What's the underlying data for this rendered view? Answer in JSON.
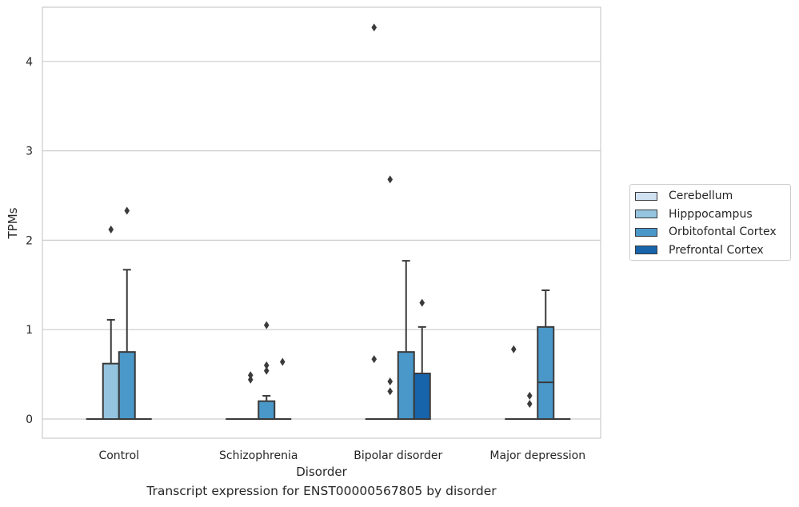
{
  "chart_data": {
    "type": "box",
    "title": "",
    "caption": "Transcript expression for ENST00000567805 by disorder",
    "xlabel": "Disorder",
    "ylabel": "TPMs",
    "ylim": [
      -0.22,
      4.6
    ],
    "yticks": [
      0,
      1,
      2,
      3,
      4
    ],
    "grid": true,
    "legend_position": "right",
    "categories": [
      "Control",
      "Schizophrenia",
      "Bipolar disorder",
      "Major depression"
    ],
    "series": [
      {
        "name": "Cerebellum",
        "color": "#d0e1f2",
        "boxes": [
          {
            "q1": 0,
            "median": 0,
            "q3": 0,
            "whislo": 0,
            "whishi": 0,
            "fliers": []
          },
          {
            "q1": 0,
            "median": 0,
            "q3": 0,
            "whislo": 0,
            "whishi": 0,
            "fliers": []
          },
          {
            "q1": 0,
            "median": 0,
            "q3": 0,
            "whislo": 0,
            "whishi": 0,
            "fliers": [
              0.67,
              4.38
            ]
          },
          {
            "q1": 0,
            "median": 0,
            "q3": 0,
            "whislo": 0,
            "whishi": 0,
            "fliers": [
              0.78
            ]
          }
        ]
      },
      {
        "name": "Hipppocampus",
        "color": "#94c4df",
        "boxes": [
          {
            "q1": 0,
            "median": 0,
            "q3": 0.62,
            "whislo": 0,
            "whishi": 1.11,
            "fliers": [
              2.12
            ]
          },
          {
            "q1": 0,
            "median": 0,
            "q3": 0,
            "whislo": 0,
            "whishi": 0,
            "fliers": [
              0.44,
              0.49
            ]
          },
          {
            "q1": 0,
            "median": 0,
            "q3": 0,
            "whislo": 0,
            "whishi": 0,
            "fliers": [
              0.31,
              0.42,
              2.68
            ]
          },
          {
            "q1": 0,
            "median": 0,
            "q3": 0,
            "whislo": 0,
            "whishi": 0,
            "fliers": [
              0.17,
              0.26
            ]
          }
        ]
      },
      {
        "name": "Orbitofontal Cortex",
        "color": "#4a98c9",
        "boxes": [
          {
            "q1": 0,
            "median": 0,
            "q3": 0.75,
            "whislo": 0,
            "whishi": 1.67,
            "fliers": [
              2.33
            ]
          },
          {
            "q1": 0,
            "median": 0,
            "q3": 0.2,
            "whislo": 0,
            "whishi": 0.26,
            "fliers": [
              0.54,
              0.6,
              1.05
            ]
          },
          {
            "q1": 0,
            "median": 0,
            "q3": 0.75,
            "whislo": 0,
            "whishi": 1.77,
            "fliers": []
          },
          {
            "q1": 0,
            "median": 0.41,
            "q3": 1.03,
            "whislo": 0,
            "whishi": 1.44,
            "fliers": []
          }
        ]
      },
      {
        "name": "Prefrontal Cortex",
        "color": "#1764ab",
        "boxes": [
          {
            "q1": 0,
            "median": 0,
            "q3": 0,
            "whislo": 0,
            "whishi": 0,
            "fliers": []
          },
          {
            "q1": 0,
            "median": 0,
            "q3": 0,
            "whislo": 0,
            "whishi": 0,
            "fliers": [
              0.64
            ]
          },
          {
            "q1": 0,
            "median": 0,
            "q3": 0.51,
            "whislo": 0,
            "whishi": 1.03,
            "fliers": [
              1.3
            ]
          },
          {
            "q1": 0,
            "median": 0,
            "q3": 0,
            "whislo": 0,
            "whishi": 0,
            "fliers": []
          }
        ]
      }
    ]
  }
}
